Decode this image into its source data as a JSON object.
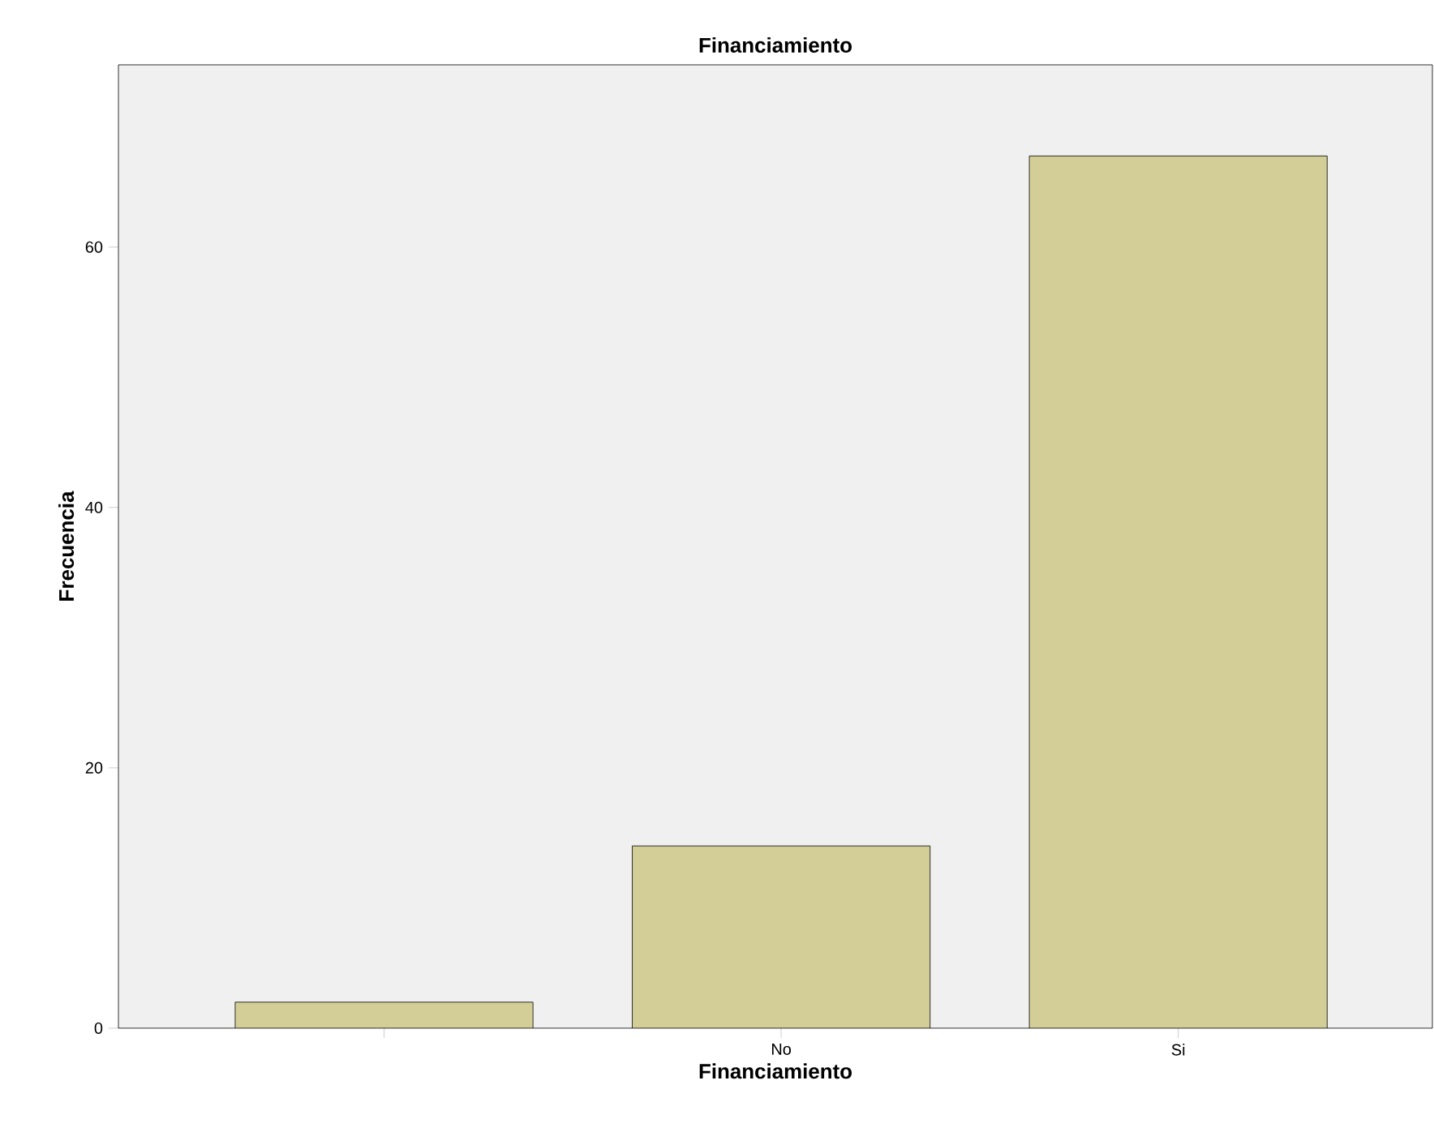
{
  "chart_data": {
    "type": "bar",
    "title": "Financiamiento",
    "xlabel": "Financiamiento",
    "ylabel": "Frecuencia",
    "categories": [
      null,
      "No",
      "Si"
    ],
    "values": [
      2,
      14,
      67
    ],
    "color": "#d3ce97",
    "ylim": [
      0,
      74
    ],
    "yticks": [
      0,
      20,
      40,
      60
    ]
  }
}
